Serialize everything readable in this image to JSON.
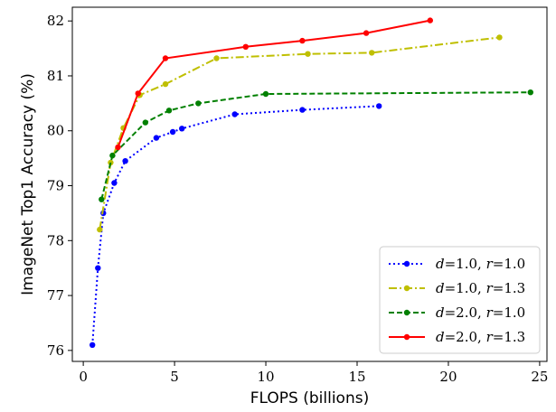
{
  "chart_data": {
    "type": "line",
    "title": "",
    "xlabel": "FLOPS (billions)",
    "ylabel": "ImageNet Top1 Accuracy (%)",
    "xlim": [
      -0.6,
      25.4
    ],
    "ylim": [
      75.8,
      82.25
    ],
    "xticks": [
      0,
      5,
      10,
      15,
      20,
      25
    ],
    "yticks": [
      76,
      77,
      78,
      79,
      80,
      81,
      82
    ],
    "grid": false,
    "legend_position": "bottom-right",
    "series": [
      {
        "name": "d=1.0, r=1.0",
        "legend_parts": {
          "a": "d",
          "a_val": "=1.0, ",
          "b": "r",
          "b_val": "=1.0"
        },
        "color": "#0000ff",
        "dash": "2,3",
        "x": [
          0.5,
          0.8,
          1.1,
          1.7,
          2.3,
          4.0,
          4.9,
          5.4,
          8.3,
          12.0,
          16.2
        ],
        "y": [
          76.1,
          77.5,
          78.5,
          79.05,
          79.45,
          79.87,
          79.98,
          80.04,
          80.3,
          80.38,
          80.45
        ]
      },
      {
        "name": "d=1.0, r=1.3",
        "legend_parts": {
          "a": "d",
          "a_val": "=1.0, ",
          "b": "r",
          "b_val": "=1.3"
        },
        "color": "#bfbf00",
        "dash": "9,3,2,3",
        "x": [
          0.9,
          1.5,
          2.2,
          3.1,
          4.5,
          7.3,
          12.3,
          15.8,
          22.8
        ],
        "y": [
          78.2,
          79.42,
          80.05,
          80.65,
          80.85,
          81.32,
          81.4,
          81.42,
          81.7
        ]
      },
      {
        "name": "d=2.0, r=1.0",
        "legend_parts": {
          "a": "d",
          "a_val": "=2.0, ",
          "b": "r",
          "b_val": "=1.0"
        },
        "color": "#008000",
        "dash": "6,3",
        "x": [
          1.0,
          1.6,
          3.4,
          4.7,
          6.3,
          10.0,
          24.5
        ],
        "y": [
          78.75,
          79.55,
          80.15,
          80.37,
          80.5,
          80.67,
          80.7
        ]
      },
      {
        "name": "d=2.0, r=1.3",
        "legend_parts": {
          "a": "d",
          "a_val": "=2.0, ",
          "b": "r",
          "b_val": "=1.3"
        },
        "color": "#ff0000",
        "dash": "",
        "x": [
          1.9,
          3.0,
          4.5,
          8.9,
          12.0,
          15.5,
          19.0
        ],
        "y": [
          79.7,
          80.68,
          81.32,
          81.53,
          81.64,
          81.78,
          82.01
        ]
      }
    ]
  }
}
